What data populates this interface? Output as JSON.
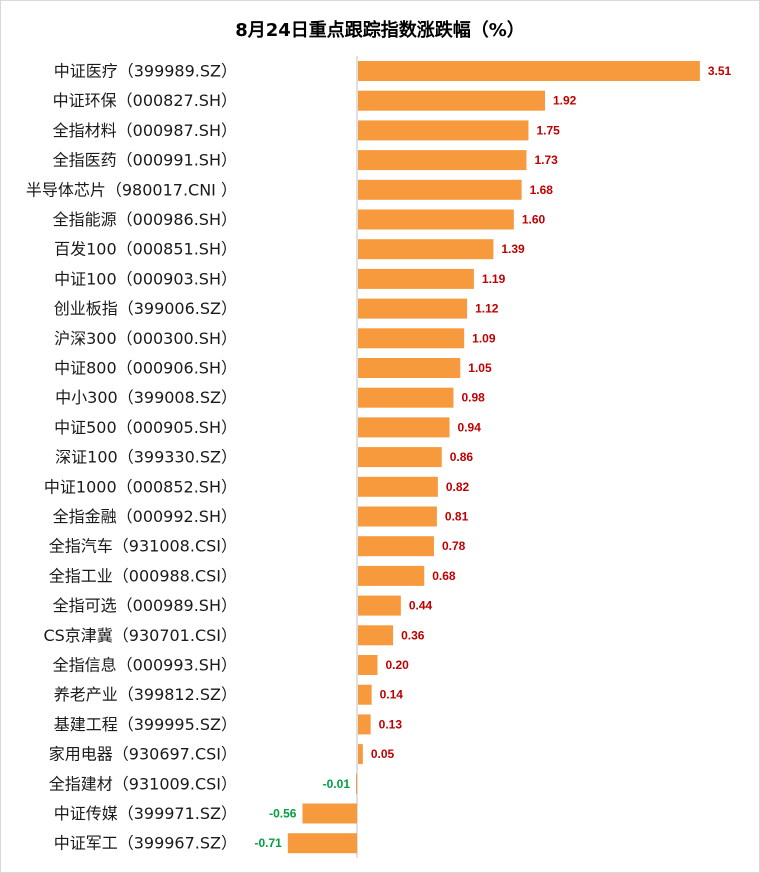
{
  "chart_data": {
    "type": "bar",
    "orientation": "horizontal",
    "title": "8月24日重点跟踪指数涨跌幅（%）",
    "xlabel": "",
    "ylabel": "",
    "xlim": [
      -0.71,
      3.51
    ],
    "grid": false,
    "legend": "none",
    "colors": {
      "bar": "#F79A3E",
      "positive_label": "#C00000",
      "negative_label": "#00A040",
      "axis": "#bfbfbf"
    },
    "categories": [
      "中证医疗（399989.SZ）",
      "中证环保（000827.SH）",
      "全指材料（000987.SH）",
      "全指医药（000991.SH）",
      "半导体芯片（980017.CNI ）",
      "全指能源（000986.SH）",
      "百发100（000851.SH）",
      "中证100（000903.SH）",
      "创业板指（399006.SZ）",
      "沪深300（000300.SH）",
      "中证800（000906.SH）",
      "中小300（399008.SZ）",
      "中证500（000905.SH）",
      "深证100（399330.SZ）",
      "中证1000（000852.SH）",
      "全指金融（000992.SH）",
      "全指汽车（931008.CSI）",
      "全指工业（000988.CSI）",
      "全指可选（000989.SH）",
      "CS京津冀（930701.CSI）",
      "全指信息（000993.SH）",
      "养老产业（399812.SZ）",
      "基建工程（399995.SZ）",
      "家用电器（930697.CSI）",
      "全指建材（931009.CSI）",
      "中证传媒（399971.SZ）",
      "中证军工（399967.SZ）"
    ],
    "values": [
      3.51,
      1.92,
      1.75,
      1.73,
      1.68,
      1.6,
      1.39,
      1.19,
      1.12,
      1.09,
      1.05,
      0.98,
      0.94,
      0.86,
      0.82,
      0.81,
      0.78,
      0.68,
      0.44,
      0.36,
      0.2,
      0.14,
      0.13,
      0.05,
      -0.01,
      -0.56,
      -0.71
    ],
    "value_labels": [
      "3.51",
      "1.92",
      "1.75",
      "1.73",
      "1.68",
      "1.60",
      "1.39",
      "1.19",
      "1.12",
      "1.09",
      "1.05",
      "0.98",
      "0.94",
      "0.86",
      "0.82",
      "0.81",
      "0.78",
      "0.68",
      "0.44",
      "0.36",
      "0.20",
      "0.14",
      "0.13",
      "0.05",
      "-0.01",
      "-0.56",
      "-0.71"
    ]
  }
}
